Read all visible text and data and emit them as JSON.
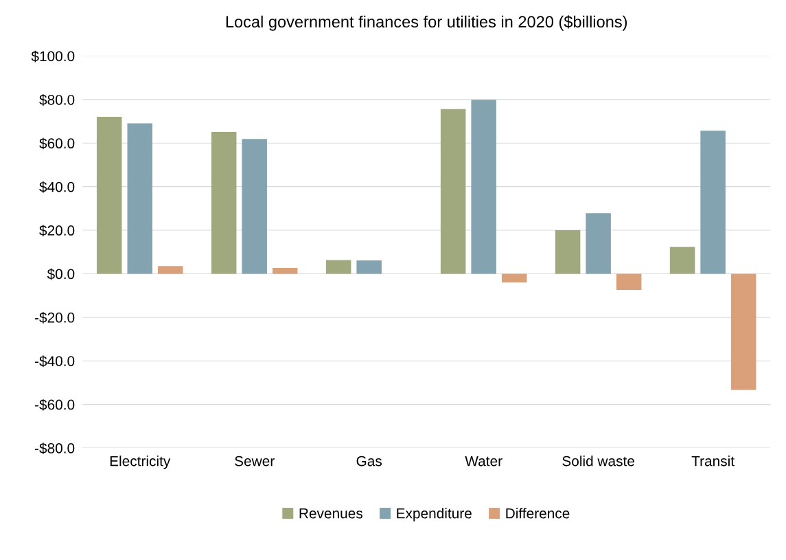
{
  "chart_data": {
    "type": "bar",
    "title": "Local government finances for utilities in 2020 ($billions)",
    "categories": [
      "Electricity",
      "Sewer",
      "Gas",
      "Water",
      "Solid waste",
      "Transit"
    ],
    "series": [
      {
        "name": "Revenues",
        "color": "#a0a97e",
        "values": [
          72.1,
          65.1,
          6.3,
          75.6,
          20.0,
          12.4
        ]
      },
      {
        "name": "Expenditure",
        "color": "#84a3b0",
        "values": [
          69.1,
          61.9,
          6.1,
          79.9,
          27.8,
          65.7
        ]
      },
      {
        "name": "Difference",
        "color": "#d9a07a",
        "values": [
          3.5,
          2.7,
          null,
          -4.0,
          -7.4,
          -53.3
        ]
      }
    ],
    "ylim": [
      -80,
      100
    ],
    "yticks": [
      {
        "value": -80,
        "label": "-$80.0"
      },
      {
        "value": -60,
        "label": "-$60.0"
      },
      {
        "value": -40,
        "label": "-$40.0"
      },
      {
        "value": -20,
        "label": "-$20.0"
      },
      {
        "value": 0,
        "label": "$0.0"
      },
      {
        "value": 20,
        "label": "$20.0"
      },
      {
        "value": 40,
        "label": "$40.0"
      },
      {
        "value": 60,
        "label": "$60.0"
      },
      {
        "value": 80,
        "label": "$80.0"
      },
      {
        "value": 100,
        "label": "$100.0"
      }
    ],
    "grid": "y",
    "legend": "bottom"
  }
}
